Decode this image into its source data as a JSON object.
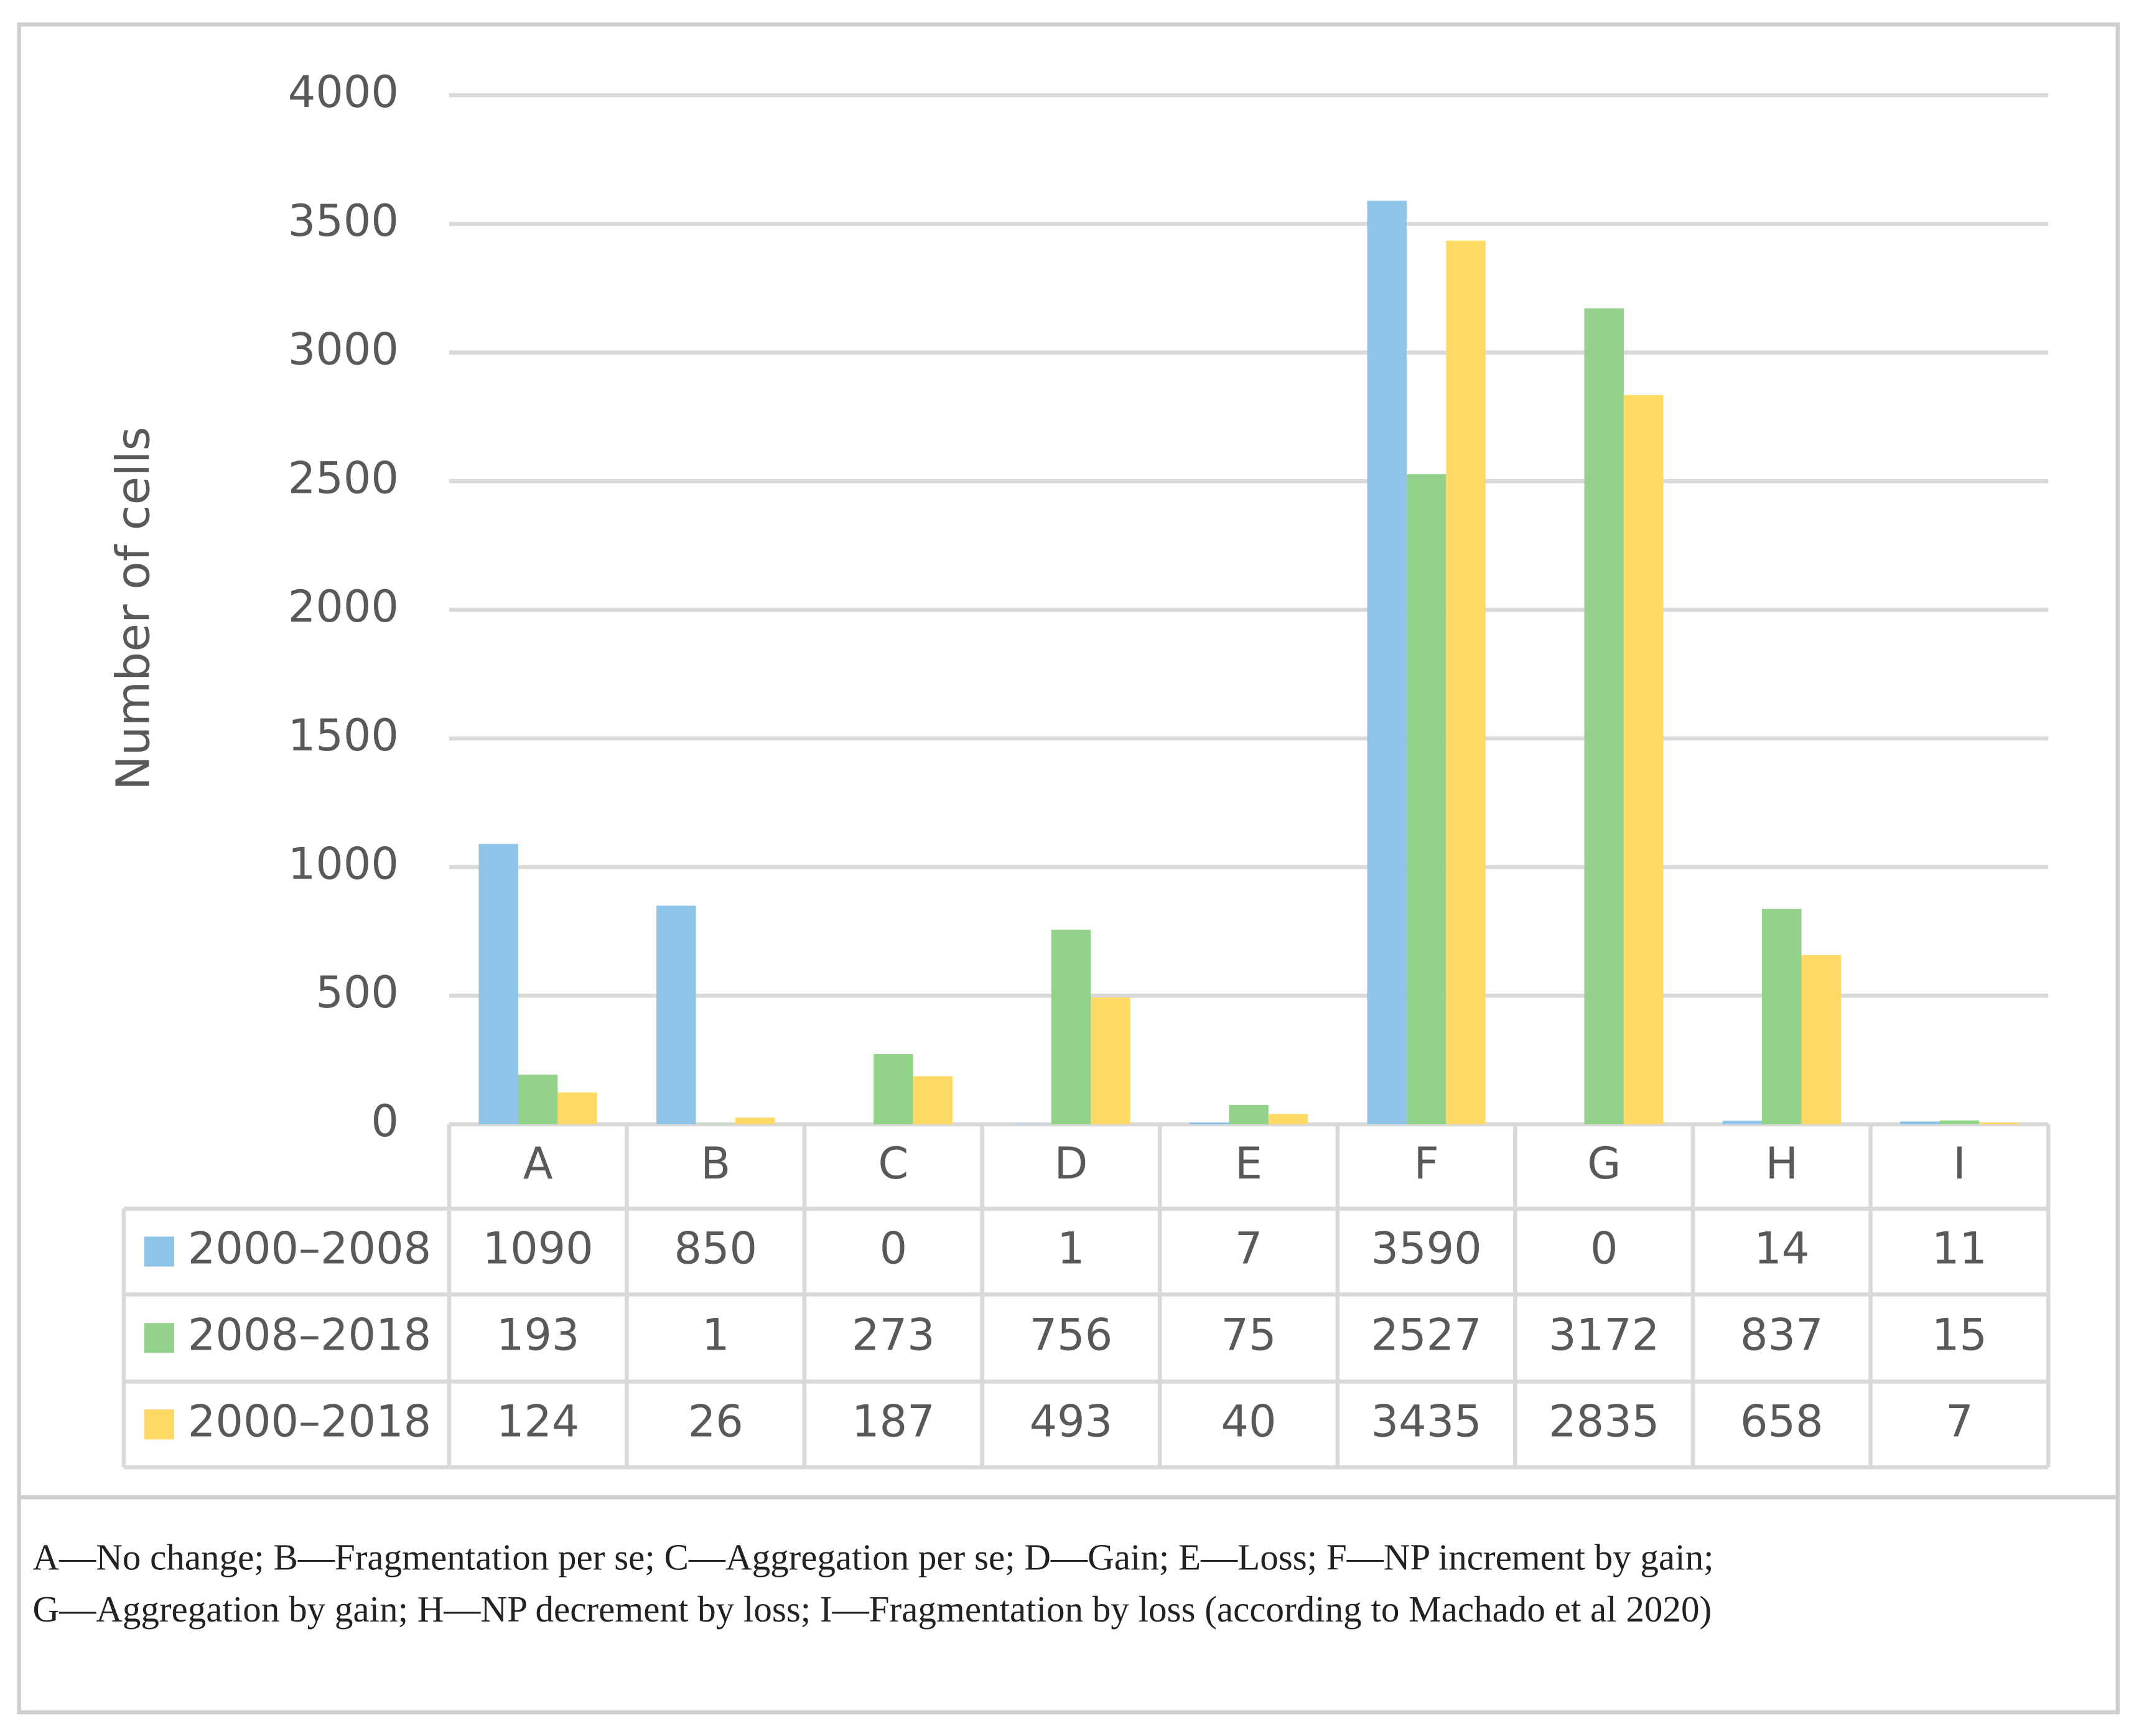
{
  "chart_data": {
    "type": "bar",
    "y_label": "Number of cells",
    "categories": [
      "A",
      "B",
      "C",
      "D",
      "E",
      "F",
      "G",
      "H",
      "I"
    ],
    "series": [
      {
        "name": "2000–2008",
        "color": "#8fc3e8",
        "values": [
          1090,
          850,
          0,
          1,
          7,
          3590,
          0,
          14,
          11
        ]
      },
      {
        "name": "2008–2018",
        "color": "#93d28a",
        "values": [
          193,
          1,
          273,
          756,
          75,
          2527,
          3172,
          837,
          15
        ]
      },
      {
        "name": "2000–2018",
        "color": "#ffd966",
        "values": [
          124,
          26,
          187,
          493,
          40,
          3435,
          2835,
          658,
          7
        ]
      }
    ],
    "ylim": [
      0,
      4000
    ],
    "yticks": [
      0,
      500,
      1000,
      1500,
      2000,
      2500,
      3000,
      3500,
      4000
    ],
    "grid": true,
    "caption": [
      "A—No change; B—Fragmentation per se; C—Aggregation per se; D—Gain; E—Loss; F—NP increment by gain;",
      "G—Aggregation by gain; H—NP decrement by loss; I—Fragmentation by loss (according to Machado et al 2020)"
    ]
  }
}
